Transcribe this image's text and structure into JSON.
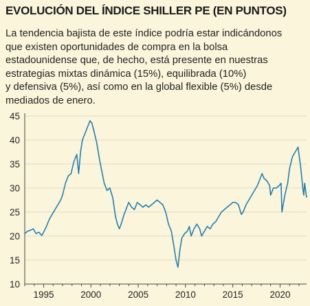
{
  "title": "EVOLUCIÓN DEL ÍNDICE SHILLER PE (EN PUNTOS)",
  "subtitle_lines": [
    "La tendencia bajista de este índice podría estar indicándonos",
    "que existen oportunidades de compra en la bolsa",
    "estadounidense que, de hecho, está presente en nuestras",
    "estrategias mixtas dinámica (15%), equilibrada (10%)",
    "y defensiva (5%), así como en la global flexible (5%) desde",
    "mediados de enero."
  ],
  "colors": {
    "background": "#fbf5dc",
    "series": "#1f7fb0",
    "grid": "#d8d2bc"
  },
  "chart_data": {
    "type": "line",
    "xlabel": "",
    "ylabel": "",
    "xlim": [
      1993,
      2022.8
    ],
    "ylim": [
      10,
      45
    ],
    "grid": "horizontal",
    "x_ticks": [
      1995,
      2000,
      2005,
      2010,
      2015,
      2020
    ],
    "x_tick_labels": [
      "1995",
      "2000",
      "2005",
      "2010",
      "2015",
      "2020"
    ],
    "y_ticks": [
      10,
      15,
      20,
      25,
      30,
      35,
      40,
      45
    ],
    "y_tick_labels": [
      "10",
      "15",
      "20",
      "25",
      "30",
      "35",
      "40",
      "45"
    ],
    "series": [
      {
        "color": "#1f7fb0",
        "x": [
          1993.0,
          1993.3,
          1993.6,
          1993.9,
          1994.2,
          1994.5,
          1994.8,
          1995.0,
          1995.3,
          1995.6,
          1995.9,
          1996.2,
          1996.5,
          1996.8,
          1997.0,
          1997.3,
          1997.6,
          1997.9,
          1998.2,
          1998.5,
          1998.7,
          1998.9,
          1999.1,
          1999.4,
          1999.7,
          1999.9,
          2000.1,
          2000.3,
          2000.6,
          2000.9,
          2001.2,
          2001.4,
          2001.7,
          2002.0,
          2002.3,
          2002.6,
          2002.8,
          2003.0,
          2003.2,
          2003.5,
          2003.8,
          2004.0,
          2004.3,
          2004.6,
          2004.9,
          2005.2,
          2005.5,
          2005.8,
          2006.1,
          2006.4,
          2006.7,
          2007.0,
          2007.3,
          2007.6,
          2007.9,
          2008.2,
          2008.5,
          2008.8,
          2009.0,
          2009.2,
          2009.4,
          2009.6,
          2009.9,
          2010.2,
          2010.4,
          2010.6,
          2010.9,
          2011.2,
          2011.5,
          2011.7,
          2012.0,
          2012.3,
          2012.6,
          2012.9,
          2013.2,
          2013.5,
          2013.8,
          2014.1,
          2014.4,
          2014.7,
          2015.0,
          2015.3,
          2015.6,
          2015.9,
          2016.1,
          2016.4,
          2016.7,
          2017.0,
          2017.3,
          2017.6,
          2017.9,
          2018.1,
          2018.3,
          2018.6,
          2018.9,
          2019.0,
          2019.3,
          2019.6,
          2019.9,
          2020.1,
          2020.2,
          2020.5,
          2020.8,
          2021.0,
          2021.3,
          2021.6,
          2021.9,
          2022.0,
          2022.2,
          2022.4,
          2022.5,
          2022.6,
          2022.8
        ],
        "y": [
          20.5,
          21.0,
          21.2,
          21.5,
          20.5,
          20.8,
          20.1,
          20.8,
          22.0,
          23.5,
          24.5,
          25.5,
          26.5,
          27.5,
          28.5,
          31.0,
          32.5,
          33.0,
          35.5,
          37.0,
          33.0,
          37.5,
          40.0,
          41.5,
          43.0,
          44.0,
          43.5,
          42.0,
          39.5,
          36.0,
          33.0,
          31.0,
          29.5,
          30.0,
          28.0,
          24.0,
          22.5,
          21.5,
          22.5,
          24.5,
          26.0,
          27.0,
          26.0,
          25.5,
          27.0,
          26.5,
          26.0,
          26.5,
          26.0,
          26.5,
          27.0,
          27.5,
          27.0,
          26.5,
          25.0,
          22.5,
          21.0,
          17.5,
          15.0,
          13.5,
          17.0,
          19.5,
          20.5,
          21.0,
          22.0,
          20.0,
          21.5,
          22.5,
          21.5,
          20.0,
          21.0,
          22.0,
          21.5,
          22.5,
          23.0,
          24.0,
          25.0,
          25.5,
          26.0,
          26.5,
          27.0,
          27.0,
          26.5,
          24.5,
          25.0,
          26.5,
          27.5,
          28.5,
          29.5,
          30.5,
          32.0,
          33.0,
          32.0,
          31.5,
          30.5,
          28.5,
          30.0,
          30.0,
          30.5,
          31.0,
          25.0,
          28.5,
          31.0,
          34.0,
          36.5,
          37.5,
          38.5,
          37.0,
          34.0,
          30.0,
          28.5,
          31.0,
          28.0
        ]
      }
    ]
  }
}
